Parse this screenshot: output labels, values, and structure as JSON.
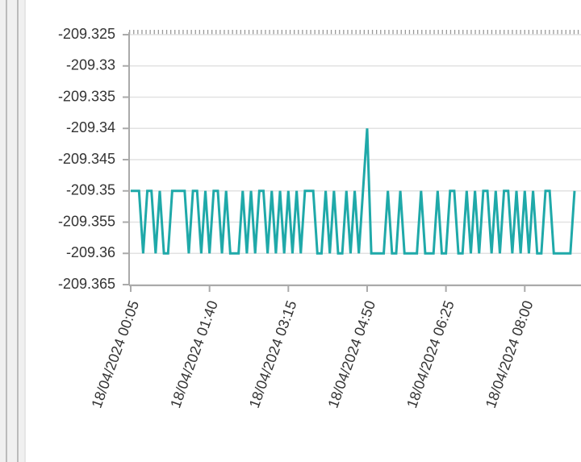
{
  "chart_data": {
    "type": "line",
    "categories": [
      "18/04/2024 00:05",
      null,
      null,
      null,
      null,
      null,
      null,
      null,
      null,
      null,
      null,
      null,
      null,
      null,
      null,
      null,
      null,
      null,
      null,
      "18/04/2024 01:40",
      null,
      null,
      null,
      null,
      null,
      null,
      null,
      null,
      null,
      null,
      null,
      null,
      null,
      null,
      null,
      null,
      null,
      null,
      "18/04/2024 03:15",
      null,
      null,
      null,
      null,
      null,
      null,
      null,
      null,
      null,
      null,
      null,
      null,
      null,
      null,
      null,
      null,
      null,
      null,
      "18/04/2024 04:50",
      null,
      null,
      null,
      null,
      null,
      null,
      null,
      null,
      null,
      null,
      null,
      null,
      null,
      null,
      null,
      null,
      null,
      null,
      "18/04/2024 06:25",
      null,
      null,
      null,
      null,
      null,
      null,
      null,
      null,
      null,
      null,
      null,
      null,
      null,
      null,
      null,
      null,
      null,
      null,
      "18/04/2024 08:00",
      null,
      null,
      null,
      null,
      null,
      null,
      null,
      null,
      null,
      null,
      null,
      null
    ],
    "values": [
      -209.35,
      -209.35,
      -209.35,
      -209.36,
      -209.35,
      -209.35,
      -209.36,
      -209.35,
      -209.36,
      -209.36,
      -209.35,
      -209.35,
      -209.35,
      -209.35,
      -209.36,
      -209.35,
      -209.35,
      -209.36,
      -209.35,
      -209.36,
      -209.35,
      -209.35,
      -209.36,
      -209.35,
      -209.36,
      -209.36,
      -209.36,
      -209.35,
      -209.36,
      -209.35,
      -209.36,
      -209.35,
      -209.35,
      -209.36,
      -209.35,
      -209.36,
      -209.35,
      -209.36,
      -209.35,
      -209.36,
      -209.35,
      -209.36,
      -209.35,
      -209.35,
      -209.35,
      -209.36,
      -209.36,
      -209.35,
      -209.36,
      -209.35,
      -209.36,
      -209.36,
      -209.35,
      -209.36,
      -209.35,
      -209.36,
      -209.35,
      -209.34,
      -209.36,
      -209.36,
      -209.36,
      -209.36,
      -209.35,
      -209.36,
      -209.36,
      -209.35,
      -209.36,
      -209.36,
      -209.36,
      -209.36,
      -209.35,
      -209.36,
      -209.36,
      -209.36,
      -209.35,
      -209.36,
      -209.36,
      -209.35,
      -209.35,
      -209.36,
      -209.36,
      -209.35,
      -209.36,
      -209.35,
      -209.36,
      -209.35,
      -209.35,
      -209.36,
      -209.35,
      -209.36,
      -209.35,
      -209.35,
      -209.36,
      -209.35,
      -209.36,
      -209.35,
      -209.36,
      -209.35,
      -209.36,
      -209.36,
      -209.35,
      -209.35,
      -209.36,
      -209.36,
      -209.36,
      -209.36,
      -209.36,
      -209.35
    ],
    "color": "#1fa9a9",
    "ylim": [
      -209.365,
      -209.325
    ],
    "yticks": [
      -209.325,
      -209.33,
      -209.335,
      -209.34,
      -209.345,
      -209.35,
      -209.355,
      -209.36,
      -209.365
    ],
    "grid": true
  }
}
